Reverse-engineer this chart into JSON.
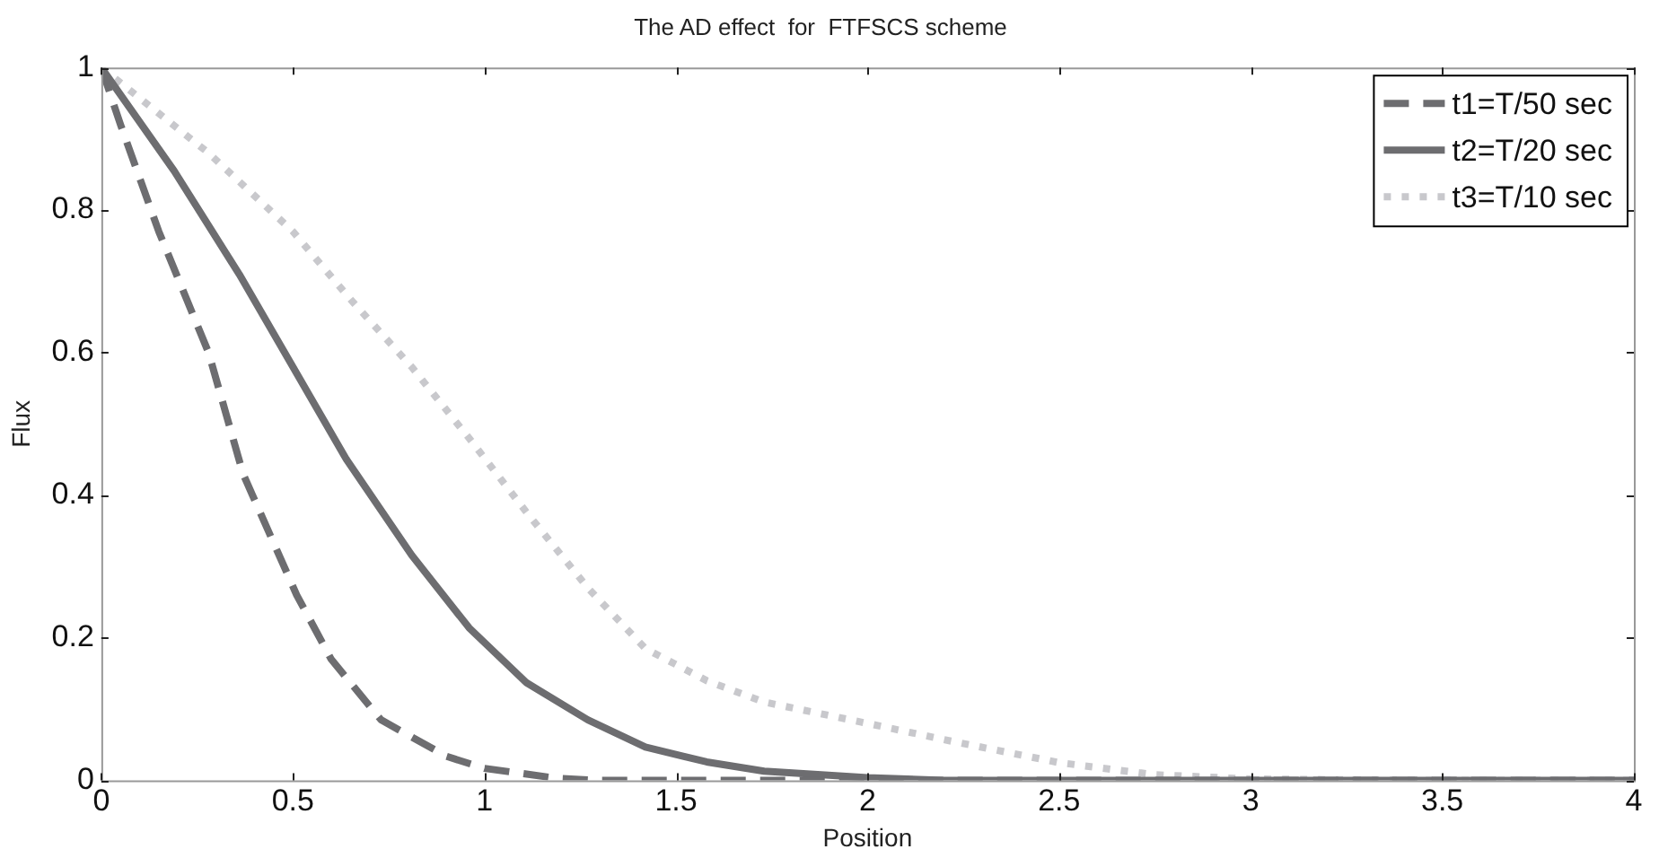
{
  "chart_data": {
    "type": "line",
    "title": "The AD effect  for  FTFSCS scheme",
    "xlabel": "Position",
    "ylabel": "Flux",
    "xlim": [
      0,
      4
    ],
    "xticks": [
      0,
      0.5,
      1,
      1.5,
      2,
      2.5,
      3,
      3.5,
      4
    ],
    "ylim": [
      0,
      1
    ],
    "yticks": [
      0,
      0.2,
      0.4,
      0.6,
      0.8,
      1
    ],
    "grid": false,
    "legend": "top right",
    "marker": "none",
    "series": [
      {
        "name": "t1=T/50 sec",
        "color": "#6d6d70",
        "line_style": "dashed",
        "x": [
          0,
          0.05,
          0.15,
          0.28,
          0.37,
          0.51,
          0.6,
          0.73,
          0.9,
          1.0,
          1.19,
          1.3,
          2,
          3,
          4
        ],
        "values": [
          1,
          0.92,
          0.77,
          0.6,
          0.43,
          0.26,
          0.17,
          0.085,
          0.034,
          0.017,
          0.003,
          0,
          0,
          0,
          0
        ]
      },
      {
        "name": "t2=T/20 sec",
        "color": "#6d6d70",
        "line_style": "solid",
        "x": [
          0,
          0.19,
          0.36,
          0.5,
          0.64,
          0.81,
          0.96,
          1.11,
          1.27,
          1.42,
          1.58,
          1.73,
          2.0,
          2.2,
          3,
          4
        ],
        "values": [
          1,
          0.855,
          0.71,
          0.58,
          0.45,
          0.316,
          0.214,
          0.137,
          0.085,
          0.047,
          0.026,
          0.013,
          0.004,
          0,
          0,
          0
        ]
      },
      {
        "name": "t3=T/10 sec",
        "color": "#c8c8cc",
        "line_style": "dotted",
        "x": [
          0,
          0.28,
          0.5,
          0.65,
          0.81,
          0.96,
          1.11,
          1.27,
          1.42,
          1.58,
          1.73,
          2.0,
          2.22,
          2.5,
          2.75,
          3,
          3.5,
          4
        ],
        "values": [
          1,
          0.88,
          0.77,
          0.675,
          0.58,
          0.48,
          0.376,
          0.27,
          0.185,
          0.14,
          0.11,
          0.08,
          0.055,
          0.025,
          0.008,
          0.002,
          0,
          0
        ]
      }
    ]
  }
}
